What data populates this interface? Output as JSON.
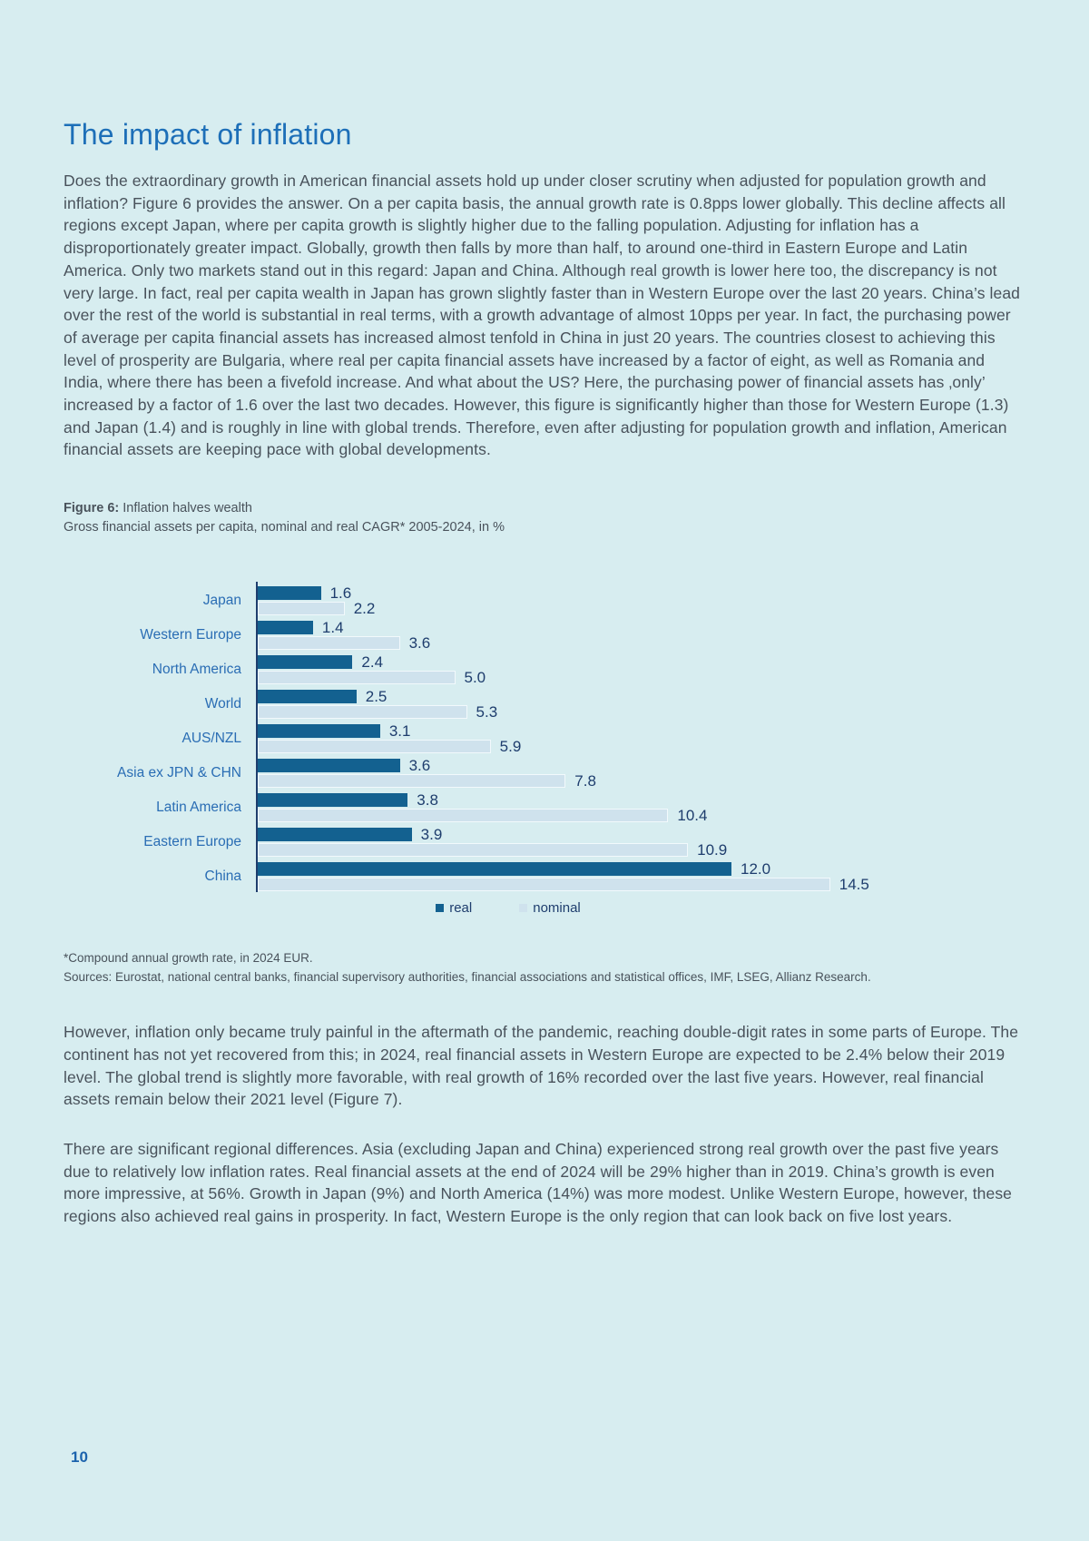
{
  "page": {
    "title": "The impact of inflation",
    "paragraph_1": "Does the extraordinary growth in American financial assets hold up under closer scrutiny when adjusted for population growth and inflation? Figure 6 provides the answer. On a per capita basis, the annual growth rate is 0.8pps lower globally. This decline affects all regions except Japan, where per capita growth is slightly higher due to the falling population. Adjusting for inflation has a disproportionately greater impact. Globally, growth then falls by more than half, to around one-third in Eastern Europe and Latin America. Only two markets stand out in this regard: Japan and China. Although real growth is lower here too, the discrepancy is not very large. In fact, real per capita wealth in Japan has grown slightly faster than in Western Europe over the last 20 years. China’s lead over the rest of the world is substantial in real terms, with a growth advantage of almost 10pps per year. In fact, the purchasing power of average per capita financial assets has increased almost tenfold in China in just 20 years. The countries closest to achieving this level of prosperity are Bulgaria, where real per capita financial assets have increased by a factor of eight, as well as Romania and India, where there has been a fivefold increase. And what about the US? Here, the purchasing power of financial assets has ‚only’ increased by a factor of 1.6 over the last two decades. However, this figure is significantly higher than those for Western Europe (1.3) and Japan (1.4) and is roughly in line with global trends. Therefore, even after adjusting for population growth and inflation, American financial assets are keeping pace with global developments.",
    "figure_caption": {
      "label": "Figure 6:",
      "title": "Inflation halves wealth",
      "subtitle": "Gross financial assets per capita, nominal and real CAGR* 2005-2024, in %"
    },
    "footnote_line_1": "*Compound annual growth rate, in 2024 EUR.",
    "footnote_line_2": "Sources: Eurostat, national central banks, financial supervisory authorities, financial associations and statistical offices, IMF, LSEG, Allianz Research.",
    "paragraph_2": "However, inflation only became truly painful in the aftermath of the pandemic, reaching double-digit rates in some parts of Europe. The continent has not yet recovered from this; in 2024, real financial assets in Western Europe are expected to be 2.4% below their 2019 level. The global trend is slightly more favorable, with real growth of 16% recorded over the last five years. However, real financial assets remain below their 2021 level (Figure 7).",
    "paragraph_3": "There are significant regional differences. Asia (excluding Japan and China) experienced strong real growth over the past five years due to relatively low inflation rates. Real financial assets at the end of 2024 will be 29% higher than in 2019. China’s growth is even more impressive, at 56%. Growth in Japan (9%) and North America (14%) was more modest. Unlike Western Europe, however, these regions also achieved real gains in prosperity. In fact, Western Europe is the only region that can look back on five lost years.",
    "page_number": "10"
  },
  "colors": {
    "background": "#d7edf0",
    "title": "#1d6fb8",
    "body_text": "#49525b",
    "category_label": "#2a6db4",
    "value_label": "#1e3d6d",
    "axis": "#1e3d6d",
    "real_bar": "#136190",
    "nominal_bar": "#cfe2ed",
    "page_number": "#1c63ad"
  },
  "chart_data": {
    "type": "bar",
    "orientation": "horizontal",
    "title": "Figure 6: Inflation halves wealth",
    "subtitle": "Gross financial assets per capita, nominal and real CAGR* 2005-2024, in %",
    "categories": [
      "Japan",
      "Western Europe",
      "North America",
      "World",
      "AUS/NZL",
      "Asia ex JPN & CHN",
      "Latin America",
      "Eastern Europe",
      "China"
    ],
    "series": [
      {
        "name": "real",
        "color_key": "real_bar",
        "values": [
          1.6,
          1.4,
          2.4,
          2.5,
          3.1,
          3.6,
          3.8,
          3.9,
          12.0
        ]
      },
      {
        "name": "nominal",
        "color_key": "nominal_bar",
        "values": [
          2.2,
          3.6,
          5.0,
          5.3,
          5.9,
          7.8,
          10.4,
          10.9,
          14.5
        ]
      }
    ],
    "value_labels": true,
    "value_decimals": 1,
    "xlim": [
      0,
      15.5
    ],
    "grid": false,
    "legend": [
      "real",
      "nominal"
    ],
    "legend_position": "bottom-center"
  }
}
